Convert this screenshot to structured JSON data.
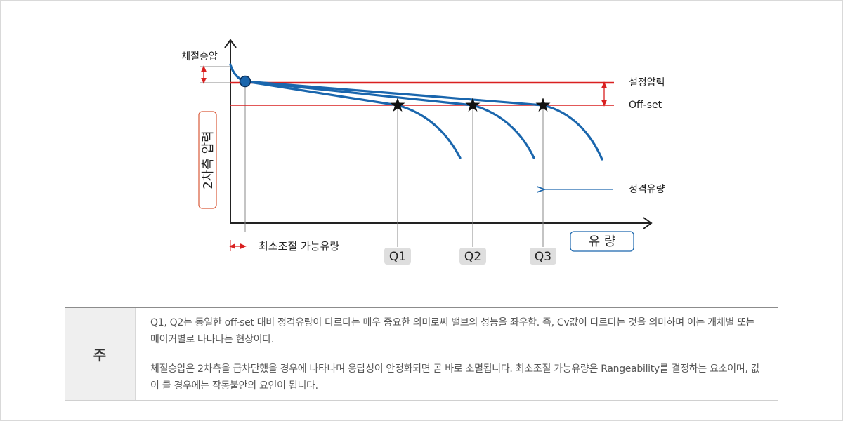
{
  "diagram": {
    "labels": {
      "cheoljeol": "체절승압",
      "secondary_pressure": "2차측 압력",
      "set_pressure": "설정압력",
      "offset": "Off-set",
      "rated_flow": "정격유량",
      "min_flow": "최소조절 가능유량",
      "flow": "유 량",
      "q1": "Q1",
      "q2": "Q2",
      "q3": "Q3"
    },
    "colors": {
      "curve": "#1a66ad",
      "red_line": "#d92020",
      "axis": "#222222",
      "label_box_border": "#d95a3a",
      "flow_box_border": "#1a66ad",
      "q_badge": "#dedede"
    }
  },
  "notes": {
    "header": "주",
    "rows": [
      "Q1, Q2는 동일한 off-set 대비 정격유량이 다르다는 매우 중요한 의미로써 밸브의 성능을 좌우함. 즉, Cv값이 다르다는 것을 의미하며 이는 개체별 또는 메이커별로 나타나는 현상이다.",
      "체절승압은 2차측을 급차단했을 경우에 나타나며 응답성이 안정화되면 곧 바로 소멸됩니다. 최소조절 가능유량은 Rangeability를 결정하는 요소이며, 값이 클 경우에는 작동불안의 요인이 됩니다."
    ]
  }
}
